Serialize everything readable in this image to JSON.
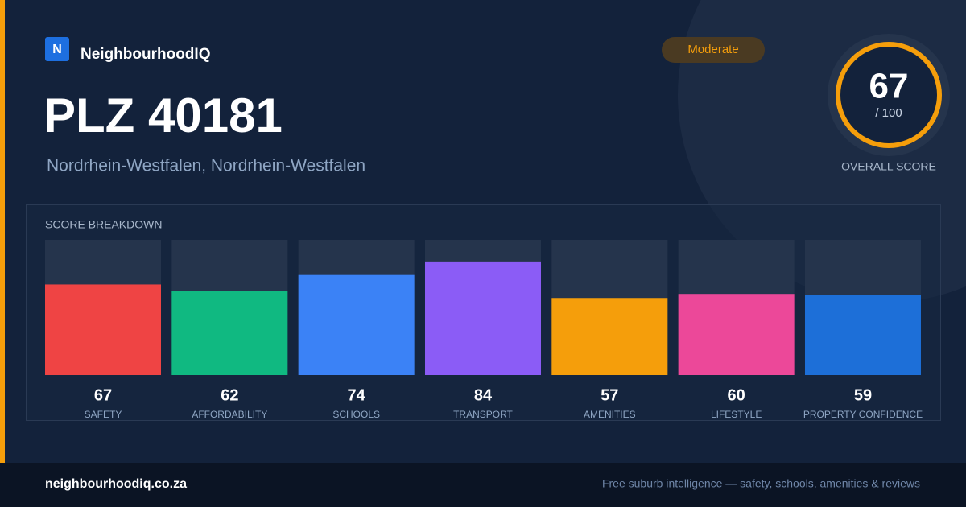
{
  "brand": {
    "logo": "N",
    "name": "NeighbourhoodIQ"
  },
  "title": "PLZ 40181",
  "subtitle": "Nordrhein-Westfalen, Nordrhein-Westfalen",
  "badge": "Moderate",
  "overall": {
    "score": "67",
    "max": "/ 100",
    "label": "OVERALL SCORE"
  },
  "chart_data": {
    "type": "bar",
    "title": "SCORE BREAKDOWN",
    "categories": [
      "SAFETY",
      "AFFORDABILITY",
      "SCHOOLS",
      "TRANSPORT",
      "AMENITIES",
      "LIFESTYLE",
      "PROPERTY CONFIDENCE"
    ],
    "values": [
      67,
      62,
      74,
      84,
      57,
      60,
      59
    ],
    "colors": [
      "#ef4444",
      "#10b981",
      "#3b82f6",
      "#8b5cf6",
      "#f59e0b",
      "#ec4899",
      "#1d6fd8"
    ],
    "ylim": [
      0,
      100
    ]
  },
  "footer": {
    "site": "neighbourhoodiq.co.za",
    "tagline": "Free suburb intelligence — safety, schools, amenities & reviews"
  }
}
